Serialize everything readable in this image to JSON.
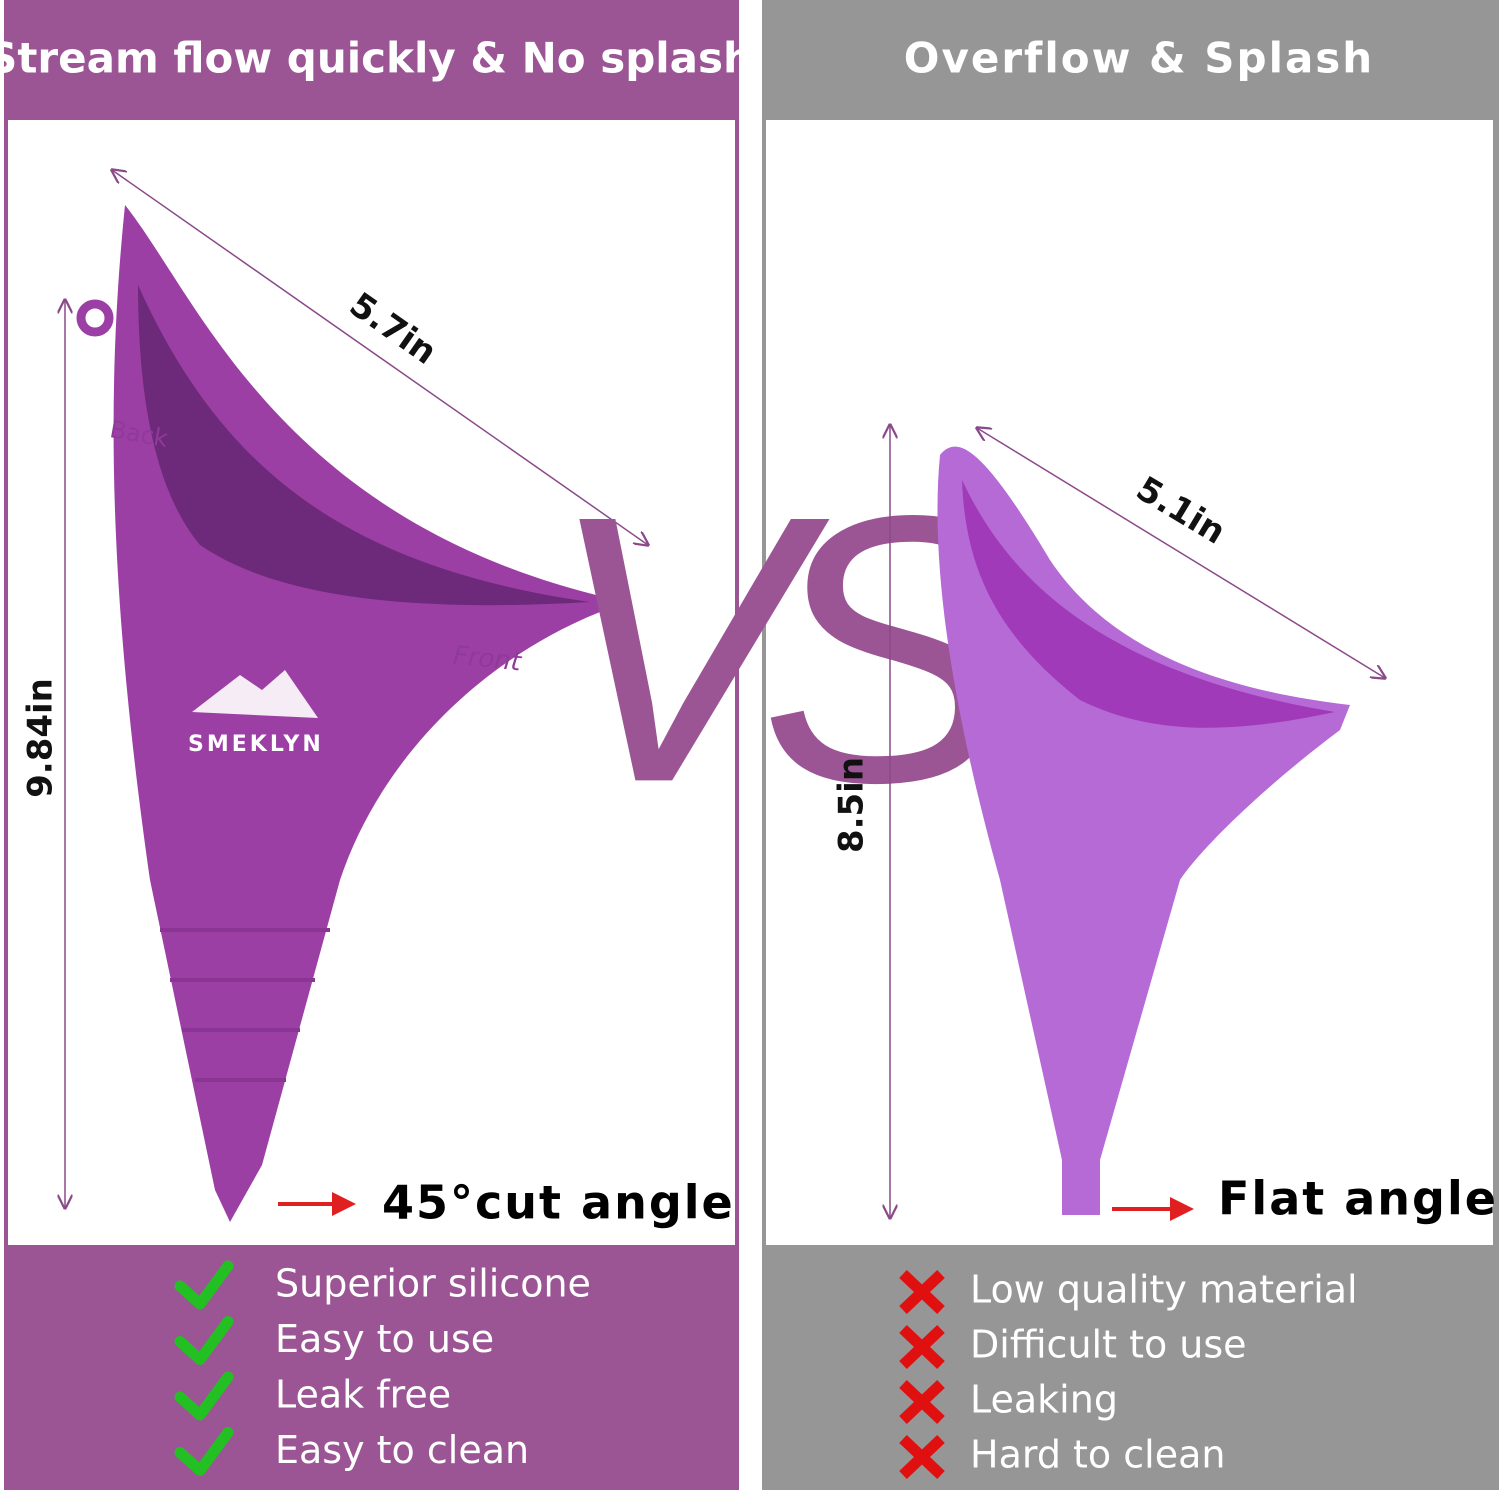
{
  "left": {
    "header": "Stream flow quickly & No splash",
    "width_label": "5.7in",
    "height_label": "9.84in",
    "back_label": "Back",
    "front_label": "Front",
    "brand": "SMEKLYN",
    "angle_label": "45°cut angle",
    "features": [
      "Superior silicone",
      "Easy to use",
      "Leak free",
      "Easy to clean"
    ]
  },
  "vs": "VS",
  "right": {
    "header": "Overflow & Splash",
    "width_label": "5.1in",
    "height_label": "8.5in",
    "angle_label": "Flat angle",
    "features": [
      "Low quality material",
      "Difficult to use",
      "Leaking",
      "Hard to clean"
    ]
  }
}
